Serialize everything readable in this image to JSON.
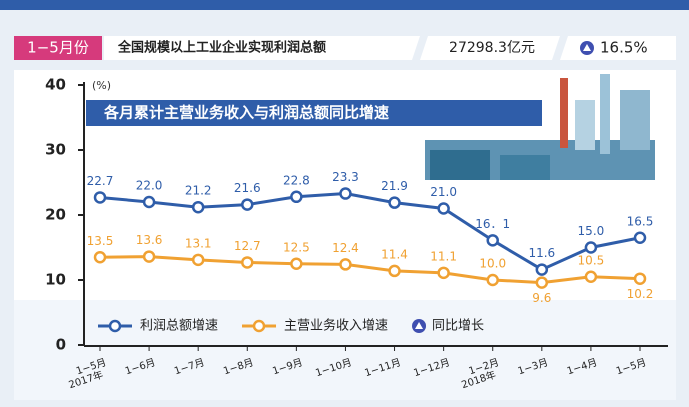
{
  "header": {
    "period": "1−5月份",
    "metric": "全国规模以上工业企业实现利润总额",
    "amount": "27298.3亿元",
    "growth": "16.5%",
    "growth_legend": "同比增长"
  },
  "chart_data": {
    "type": "line",
    "title": "各月累计主营业务收入与利润总额同比增速",
    "ylabel": "(%)",
    "categories": [
      "1−5月",
      "1−6月",
      "1−7月",
      "1−8月",
      "1−9月",
      "1−10月",
      "1−11月",
      "1−12月",
      "1−2月",
      "1−3月",
      "1−4月",
      "1−5月"
    ],
    "annotations": [
      "2017年",
      "2018年"
    ],
    "ylim": [
      0,
      40
    ],
    "yticks": [
      0,
      10,
      20,
      30,
      40
    ],
    "series": [
      {
        "name": "利润总额增速",
        "color": "#2f5da9",
        "values": [
          22.7,
          22.0,
          21.2,
          21.6,
          22.8,
          23.3,
          21.9,
          21.0,
          16.1,
          11.6,
          15.0,
          16.5
        ],
        "value_labels": [
          "22.7",
          "22.0",
          "21.2",
          "21.6",
          "22.8",
          "23.3",
          "21.9",
          "21.0",
          "16．1",
          "11.6",
          "15.0",
          "16.5"
        ]
      },
      {
        "name": "主营业务收入增速",
        "color": "#f0a132",
        "values": [
          13.5,
          13.6,
          13.1,
          12.7,
          12.5,
          12.4,
          11.4,
          11.1,
          10.0,
          9.6,
          10.5,
          10.2
        ],
        "value_labels": [
          "13.5",
          "13.6",
          "13.1",
          "12.7",
          "12.5",
          "12.4",
          "11.4",
          "11.1",
          "10.0",
          "9.6",
          "10.5",
          "10.2"
        ]
      }
    ]
  }
}
